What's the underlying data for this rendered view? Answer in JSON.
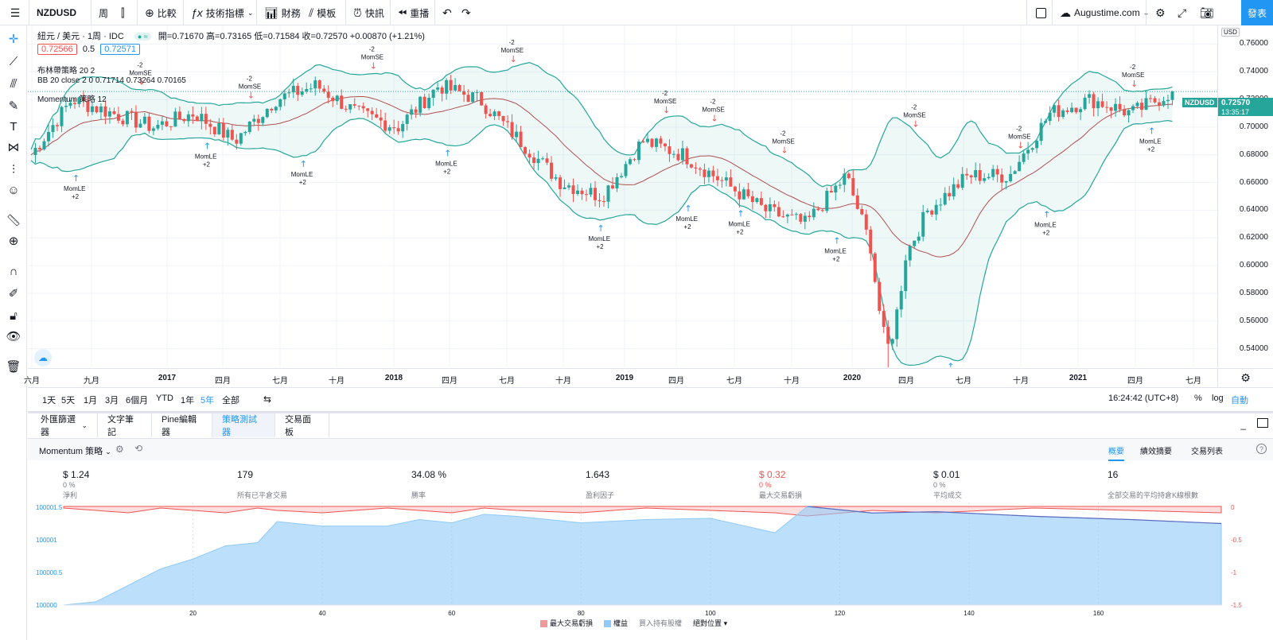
{
  "toolbar": {
    "symbol": "NZDUSD",
    "interval": "周",
    "compare": "比較",
    "indicators": "技術指標",
    "financials": "財務",
    "templates": "模板",
    "alerts": "快訊",
    "replay": "重播",
    "layout_name": "Augustime.com",
    "publish": "發表"
  },
  "legend": {
    "title": "紐元 / 美元 · 1周 · IDC",
    "ohlc": "開=0.71670 高=0.73165 低=0.71584 收=0.72570 +0.00870 (+1.21%)",
    "bid": "0.72566",
    "spread": "0.5",
    "ask": "0.72571",
    "bb_strategy": "布林帶策略 20 2",
    "bb_values": "BB 20 close 2 0  0.71714  0.73264  0.70165",
    "momentum": "Momentum 策略 12"
  },
  "price_axis": {
    "currency": "USD",
    "ticks": [
      "0.76000",
      "0.74000",
      "0.72000",
      "0.70000",
      "0.68000",
      "0.66000",
      "0.64000",
      "0.62000",
      "0.60000",
      "0.58000",
      "0.56000",
      "0.54000"
    ],
    "last_symbol": "NZDUSD",
    "last_price": "0.72570",
    "countdown": "13:35:17"
  },
  "time_axis": [
    "六月",
    "九月",
    "2017",
    "四月",
    "七月",
    "十月",
    "2018",
    "四月",
    "七月",
    "十月",
    "2019",
    "四月",
    "七月",
    "十月",
    "2020",
    "四月",
    "七月",
    "十月",
    "2021",
    "四月",
    "七月"
  ],
  "chart_data": {
    "type": "candlestick",
    "symbol": "NZDUSD",
    "interval": "1W",
    "ylim": [
      0.53,
      0.77
    ],
    "overlays": [
      "Bollinger Bands 20 2",
      "Momentum strategy 12"
    ],
    "signal_labels": [
      "MomLE",
      "MomSE",
      "+2",
      "-2"
    ],
    "close_path_approx": [
      {
        "x": "2016-06",
        "y": 0.68
      },
      {
        "x": "2016-08",
        "y": 0.72
      },
      {
        "x": "2016-10",
        "y": 0.71
      },
      {
        "x": "2016-12",
        "y": 0.7
      },
      {
        "x": "2017-02",
        "y": 0.71
      },
      {
        "x": "2017-04",
        "y": 0.69
      },
      {
        "x": "2017-06",
        "y": 0.72
      },
      {
        "x": "2017-08",
        "y": 0.73
      },
      {
        "x": "2017-10",
        "y": 0.71
      },
      {
        "x": "2017-12",
        "y": 0.7
      },
      {
        "x": "2018-02",
        "y": 0.73
      },
      {
        "x": "2018-04",
        "y": 0.72
      },
      {
        "x": "2018-06",
        "y": 0.69
      },
      {
        "x": "2018-08",
        "y": 0.66
      },
      {
        "x": "2018-10",
        "y": 0.65
      },
      {
        "x": "2018-12",
        "y": 0.69
      },
      {
        "x": "2019-03",
        "y": 0.68
      },
      {
        "x": "2019-06",
        "y": 0.66
      },
      {
        "x": "2019-08",
        "y": 0.64
      },
      {
        "x": "2019-10",
        "y": 0.63
      },
      {
        "x": "2019-12",
        "y": 0.665
      },
      {
        "x": "2020-03",
        "y": 0.58
      },
      {
        "x": "2020-06",
        "y": 0.64
      },
      {
        "x": "2020-08",
        "y": 0.665
      },
      {
        "x": "2020-10",
        "y": 0.665
      },
      {
        "x": "2020-12",
        "y": 0.71
      },
      {
        "x": "2021-02",
        "y": 0.72
      },
      {
        "x": "2021-04",
        "y": 0.71
      },
      {
        "x": "2021-05",
        "y": 0.7257
      }
    ]
  },
  "rangebar": {
    "ranges": [
      "1天",
      "5天",
      "1月",
      "3月",
      "6個月",
      "YTD",
      "1年",
      "5年",
      "全部"
    ],
    "active": "5年",
    "clock": "16:24:42 (UTC+8)",
    "pct": "%",
    "log": "log",
    "auto": "自動"
  },
  "bottom_tabs": [
    "外匯篩選器",
    "文字筆記",
    "Pine編輯器",
    "策略測試器",
    "交易面板"
  ],
  "strategy": {
    "name": "Momentum 策略",
    "view_tabs": [
      "概要",
      "績效摘要",
      "交易列表"
    ],
    "metrics": [
      {
        "value": "$ 1.24",
        "sub": "0 %",
        "label": "淨利"
      },
      {
        "value": "179",
        "sub": "",
        "label": "所有已平倉交易"
      },
      {
        "value": "34.08 %",
        "sub": "",
        "label": "勝率"
      },
      {
        "value": "1.643",
        "sub": "",
        "label": "盈利因子"
      },
      {
        "value": "$ 0.32",
        "sub": "0 %",
        "label": "最大交易虧損"
      },
      {
        "value": "$ 0.01",
        "sub": "0 %",
        "label": "平均成交"
      },
      {
        "value": "16",
        "sub": "",
        "label": "全部交易的平均持倉K線根數"
      }
    ],
    "equity_axis_left": [
      "100001.5",
      "100001",
      "100000.5",
      "100000"
    ],
    "equity_axis_right": [
      "0",
      "-0.5",
      "-1",
      "-1.5"
    ],
    "equity_x": [
      "20",
      "40",
      "60",
      "80",
      "100",
      "120",
      "140",
      "160"
    ],
    "legend": {
      "drawdown": "最大交易虧損",
      "equity": "權益",
      "buy_hold": "買入持有股權",
      "abs": "絕對位置"
    },
    "colors": {
      "equity": "#90caf9",
      "drawdown": "#ef5350"
    },
    "equity_data": [
      {
        "trade": 0,
        "equity": 100000
      },
      {
        "trade": 5,
        "equity": 100000.05
      },
      {
        "trade": 10,
        "equity": 100000.3
      },
      {
        "trade": 15,
        "equity": 100000.55
      },
      {
        "trade": 20,
        "equity": 100000.7
      },
      {
        "trade": 25,
        "equity": 100000.9
      },
      {
        "trade": 30,
        "equity": 100000.95
      },
      {
        "trade": 33,
        "equity": 100001.27
      },
      {
        "trade": 40,
        "equity": 100001.2
      },
      {
        "trade": 50,
        "equity": 100001.2
      },
      {
        "trade": 55,
        "equity": 100001.3
      },
      {
        "trade": 60,
        "equity": 100001.25
      },
      {
        "trade": 65,
        "equity": 100001.38
      },
      {
        "trade": 70,
        "equity": 100001.35
      },
      {
        "trade": 80,
        "equity": 100001.25
      },
      {
        "trade": 90,
        "equity": 100001.3
      },
      {
        "trade": 100,
        "equity": 100001.32
      },
      {
        "trade": 110,
        "equity": 100001.1
      },
      {
        "trade": 115,
        "equity": 100001.5
      },
      {
        "trade": 125,
        "equity": 100001.4
      },
      {
        "trade": 135,
        "equity": 100001.42
      },
      {
        "trade": 150,
        "equity": 100001.35
      },
      {
        "trade": 165,
        "equity": 100001.3
      },
      {
        "trade": 179,
        "equity": 100001.24
      }
    ]
  },
  "colors": {
    "up": "#26a69a",
    "down": "#ef5350",
    "accent": "#2196f3",
    "band": "#26a69a",
    "basis": "#b05050"
  }
}
